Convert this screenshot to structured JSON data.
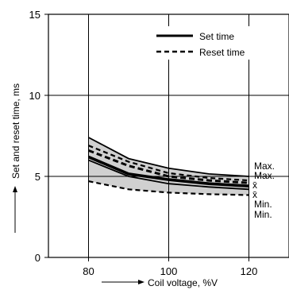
{
  "chart_data": {
    "type": "line",
    "title": "",
    "xlabel": "Coil voltage, %V",
    "ylabel": "Set and reset time, ms",
    "xlim": [
      70,
      130
    ],
    "ylim": [
      0,
      15
    ],
    "grid": true,
    "x_ticks": [
      80,
      100,
      120
    ],
    "y_ticks": [
      0,
      5,
      10,
      15
    ],
    "legend": {
      "placement": "top-right",
      "entries": [
        {
          "label": "Set time",
          "style": "solid"
        },
        {
          "label": "Reset time",
          "style": "dashed"
        }
      ]
    },
    "series": [
      {
        "name": "Set time",
        "stat": "Max.",
        "style": "solid",
        "x": [
          80,
          90,
          100,
          110,
          120
        ],
        "y": [
          7.4,
          6.1,
          5.5,
          5.15,
          5.0
        ]
      },
      {
        "name": "Set time",
        "stat": "x̄",
        "style": "solid-bold",
        "x": [
          80,
          90,
          100,
          110,
          120
        ],
        "y": [
          6.2,
          5.15,
          4.8,
          4.55,
          4.4
        ]
      },
      {
        "name": "Set time",
        "stat": "Min.",
        "style": "solid",
        "x": [
          80,
          90,
          100,
          110,
          120
        ],
        "y": [
          6.0,
          5.0,
          4.55,
          4.35,
          4.2
        ]
      },
      {
        "name": "Reset time",
        "stat": "Max.",
        "style": "dashed",
        "x": [
          80,
          90,
          100,
          110,
          120
        ],
        "y": [
          6.9,
          5.9,
          5.2,
          4.9,
          4.75
        ]
      },
      {
        "name": "Reset time",
        "stat": "x̄",
        "style": "dashed-bold",
        "x": [
          80,
          90,
          100,
          110,
          120
        ],
        "y": [
          6.6,
          5.65,
          5.0,
          4.75,
          4.6
        ]
      },
      {
        "name": "Reset time",
        "stat": "Min.",
        "style": "dashed",
        "x": [
          80,
          90,
          100,
          110,
          120
        ],
        "y": [
          4.7,
          4.2,
          4.0,
          3.9,
          3.85
        ]
      }
    ],
    "shaded_band": {
      "between": [
        "Reset time Min.",
        "Set time Max."
      ],
      "color": "#d0d0d0"
    },
    "annotations": [
      "Max.",
      "Max.",
      "x̄",
      "x̄",
      "Min.",
      "Min."
    ]
  }
}
